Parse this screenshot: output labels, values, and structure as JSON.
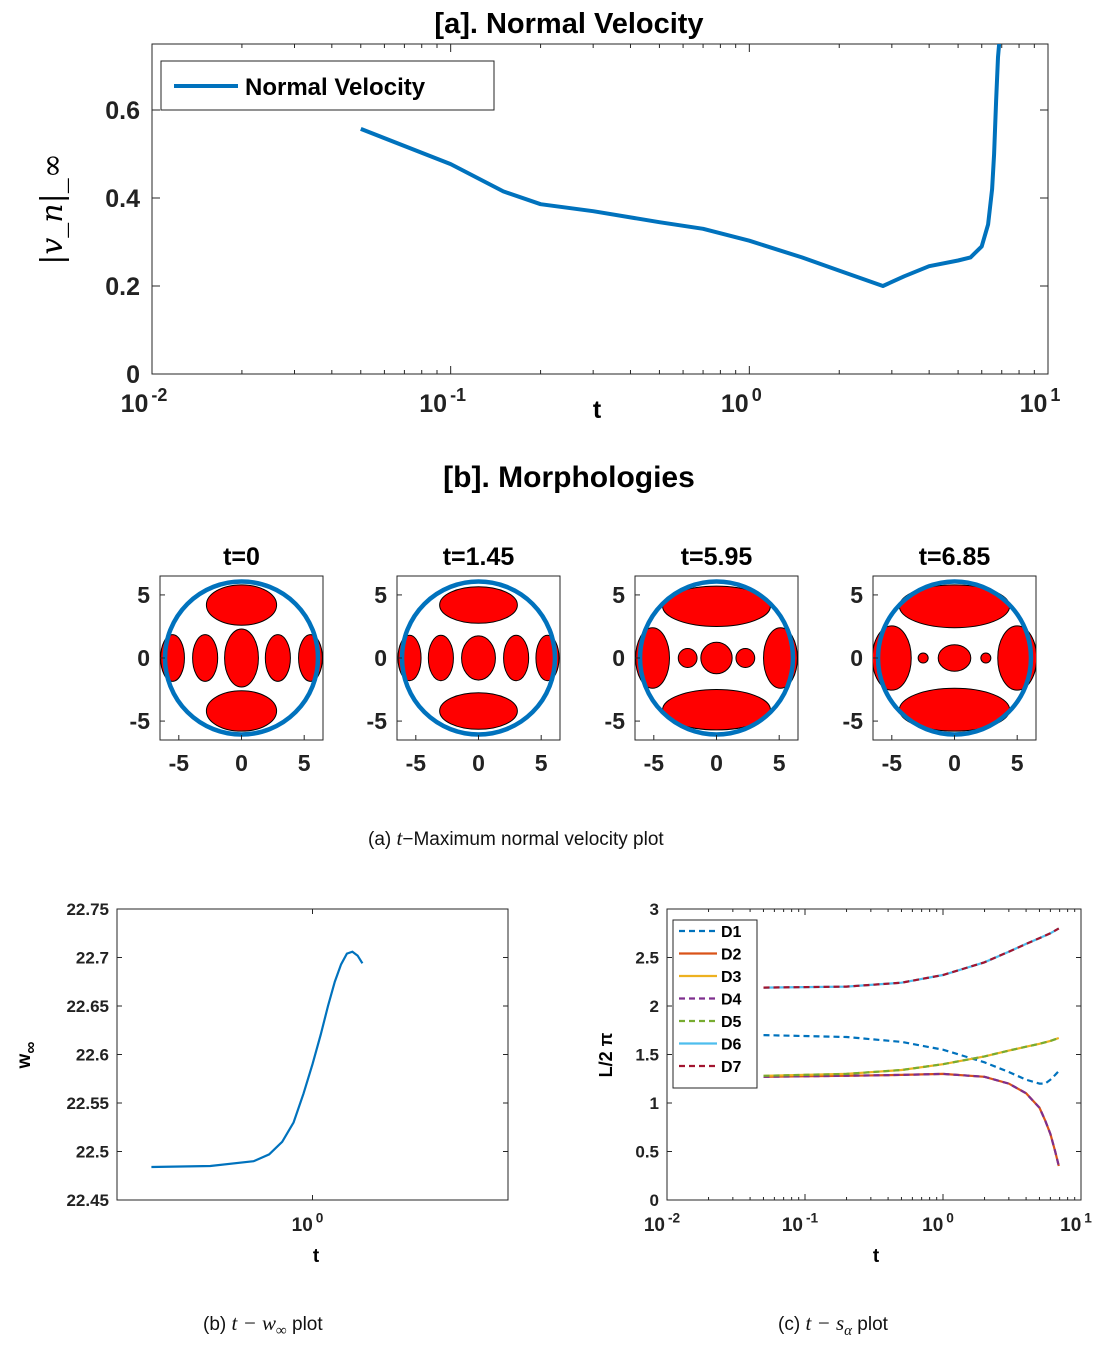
{
  "colors": {
    "blue": "#0072BD",
    "orange": "#D95319",
    "yellow": "#EDB120",
    "purple": "#7E2F8E",
    "green": "#77AC30",
    "cyan": "#4DBEEE",
    "darkred": "#A2142F",
    "blob_fill": "#FF0000"
  },
  "chart_data": [
    {
      "type": "line",
      "title": "[a]. Normal Velocity",
      "xlabel": "t",
      "ylabel": "|v_n|_∞",
      "xscale": "log",
      "xlim": [
        0.01,
        10
      ],
      "ylim": [
        0,
        0.75
      ],
      "xticks": [
        "10",
        "10",
        "10",
        "10"
      ],
      "xtick_exponents": [
        "-2",
        "-1",
        "0",
        "1"
      ],
      "yticks": [
        "0",
        "0.2",
        "0.4",
        "0.6"
      ],
      "legend": {
        "entries": [
          "Normal Velocity"
        ],
        "placement": "top-left"
      },
      "series": [
        {
          "name": "Normal Velocity",
          "x": [
            0.05,
            0.1,
            0.15,
            0.2,
            0.3,
            0.5,
            0.7,
            1.0,
            1.5,
            2.0,
            2.8,
            3.3,
            4.0,
            5.0,
            5.5,
            6.0,
            6.3,
            6.5,
            6.6,
            6.7,
            6.8,
            6.9
          ],
          "y": [
            0.557,
            0.477,
            0.415,
            0.386,
            0.37,
            0.345,
            0.33,
            0.303,
            0.265,
            0.235,
            0.2,
            0.222,
            0.245,
            0.258,
            0.265,
            0.29,
            0.34,
            0.42,
            0.5,
            0.62,
            0.72,
            0.77
          ]
        }
      ]
    },
    {
      "type": "other",
      "title": "[b]. Morphologies",
      "panels": [
        {
          "label": "t=0"
        },
        {
          "label": "t=1.45"
        },
        {
          "label": "t=5.95"
        },
        {
          "label": "t=6.85"
        }
      ],
      "xticks": [
        "-5",
        "0",
        "5"
      ],
      "yticks": [
        "5",
        "0",
        "-5"
      ],
      "xlim": [
        -6.5,
        6.5
      ],
      "ylim": [
        -6.5,
        6.5
      ]
    },
    {
      "type": "line",
      "xlabel": "t",
      "ylabel": "w",
      "ylabel_subscript": "∞",
      "xscale": "log",
      "xlim": [
        0.1,
        10
      ],
      "ylim": [
        22.45,
        22.75
      ],
      "xtick_base": "10",
      "xtick_exponent": "0",
      "yticks": [
        "22.45",
        "22.5",
        "22.55",
        "22.6",
        "22.65",
        "22.7",
        "22.75"
      ],
      "series": [
        {
          "x": [
            0.15,
            0.3,
            0.5,
            0.6,
            0.7,
            0.8,
            0.9,
            1.0,
            1.1,
            1.2,
            1.3,
            1.4,
            1.5,
            1.6,
            1.7,
            1.8
          ],
          "y": [
            22.484,
            22.485,
            22.49,
            22.497,
            22.51,
            22.53,
            22.56,
            22.59,
            22.62,
            22.65,
            22.675,
            22.693,
            22.704,
            22.706,
            22.702,
            22.694
          ]
        }
      ]
    },
    {
      "type": "line",
      "xlabel": "t",
      "ylabel": "L/2 π",
      "xscale": "log",
      "xlim": [
        0.01,
        10
      ],
      "ylim": [
        0,
        3
      ],
      "xticks": [
        "10",
        "10",
        "10",
        "10"
      ],
      "xtick_exponents": [
        "-2",
        "-1",
        "0",
        "1"
      ],
      "yticks": [
        "0",
        "0.5",
        "1",
        "1.5",
        "2",
        "2.5",
        "3"
      ],
      "legend": {
        "entries": [
          "D1",
          "D2",
          "D3",
          "D4",
          "D5",
          "D6",
          "D7"
        ],
        "placement": "top-left"
      },
      "series": [
        {
          "name": "D1",
          "style": "dashed",
          "x": [
            0.05,
            0.2,
            0.5,
            1.0,
            2.0,
            3.0,
            4.0,
            5.0,
            5.5,
            6.0,
            6.5,
            6.9
          ],
          "y": [
            1.7,
            1.68,
            1.63,
            1.55,
            1.42,
            1.32,
            1.24,
            1.2,
            1.2,
            1.24,
            1.29,
            1.33
          ]
        },
        {
          "name": "D2",
          "style": "solid",
          "x": [
            0.05,
            0.2,
            0.5,
            1.0,
            2.0,
            3.0,
            4.0,
            5.0,
            5.5,
            6.0,
            6.5,
            6.9
          ],
          "y": [
            1.27,
            1.28,
            1.29,
            1.3,
            1.27,
            1.2,
            1.1,
            0.95,
            0.82,
            0.68,
            0.5,
            0.35
          ]
        },
        {
          "name": "D3",
          "style": "solid",
          "x": [
            0.05,
            0.2,
            0.5,
            1.0,
            2.0,
            3.0,
            4.0,
            5.0,
            6.0,
            6.9
          ],
          "y": [
            1.28,
            1.3,
            1.34,
            1.4,
            1.48,
            1.54,
            1.58,
            1.61,
            1.64,
            1.67
          ]
        },
        {
          "name": "D4",
          "style": "dashed",
          "x": [
            0.05,
            0.2,
            0.5,
            1.0,
            2.0,
            3.0,
            4.0,
            5.0,
            5.5,
            6.0,
            6.5,
            6.9
          ],
          "y": [
            1.27,
            1.28,
            1.29,
            1.3,
            1.27,
            1.2,
            1.1,
            0.95,
            0.82,
            0.68,
            0.5,
            0.35
          ]
        },
        {
          "name": "D5",
          "style": "dashed",
          "x": [
            0.05,
            0.2,
            0.5,
            1.0,
            2.0,
            3.0,
            4.0,
            5.0,
            6.0,
            6.9
          ],
          "y": [
            1.28,
            1.3,
            1.34,
            1.4,
            1.48,
            1.54,
            1.58,
            1.61,
            1.64,
            1.67
          ]
        },
        {
          "name": "D6",
          "style": "solid",
          "x": [
            0.05,
            0.2,
            0.5,
            1.0,
            2.0,
            3.0,
            4.0,
            5.0,
            6.0,
            6.9
          ],
          "y": [
            2.19,
            2.2,
            2.24,
            2.32,
            2.45,
            2.56,
            2.64,
            2.7,
            2.75,
            2.8
          ]
        },
        {
          "name": "D7",
          "style": "dashed",
          "x": [
            0.05,
            0.2,
            0.5,
            1.0,
            2.0,
            3.0,
            4.0,
            5.0,
            6.0,
            6.9
          ],
          "y": [
            2.19,
            2.2,
            2.24,
            2.32,
            2.45,
            2.56,
            2.64,
            2.7,
            2.75,
            2.8
          ]
        }
      ]
    }
  ],
  "captions": {
    "a": {
      "prefix": "(a) ",
      "math": "t",
      "text": "−Maximum normal velocity plot"
    },
    "b": {
      "prefix": "(b) ",
      "math": "t − w",
      "math_sub": "∞",
      "text": " plot"
    },
    "c": {
      "prefix": "(c) ",
      "math": "t − s",
      "math_sub": "α",
      "text": " plot"
    }
  }
}
